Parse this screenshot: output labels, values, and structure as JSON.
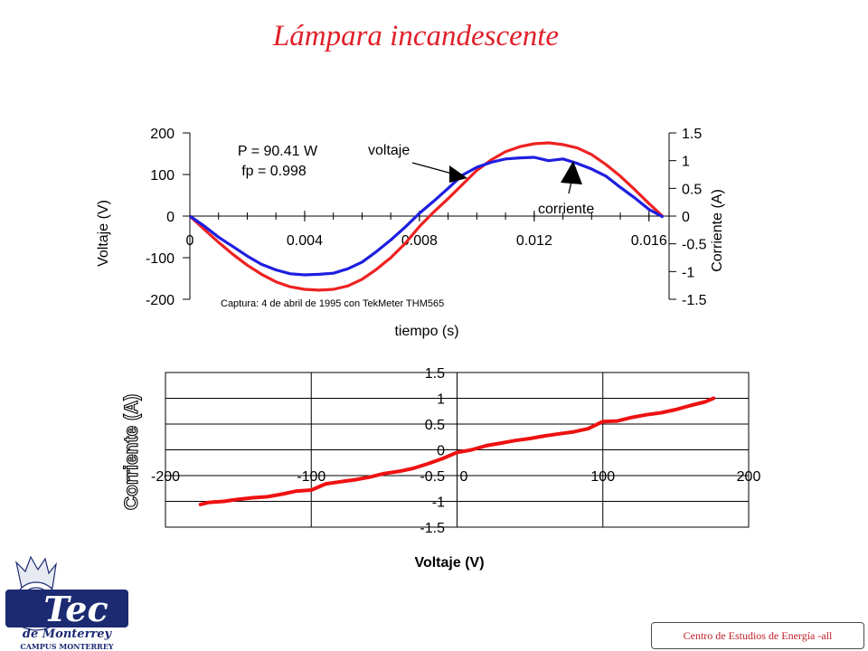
{
  "title": "Lámpara incandescente",
  "footer": "Centro de Estudios de Energía -all",
  "logo": {
    "brand": "Tec",
    "line2": "de Monterrey",
    "line3": "CAMPUS MONTERREY"
  },
  "colors": {
    "title": "#e0202a",
    "voltage": "#ee2222",
    "current": "#1e1ee0",
    "iv_line": "#ee1111",
    "logo": "#1c2a72"
  },
  "chart_data": [
    {
      "type": "line",
      "xlabel": "tiempo (s)",
      "ylabel": "Voltaje (V)",
      "y2label": "Corriente (A)",
      "xlim": [
        0,
        0.0167
      ],
      "ylim": [
        -200,
        200
      ],
      "y2lim": [
        -1.5,
        1.5
      ],
      "x_tick_labels": [
        "0",
        "0.004",
        "0.008",
        "0.012",
        "0.016"
      ],
      "y_tick_labels": [
        "200",
        "100",
        "0",
        "-100",
        "-200"
      ],
      "y2_tick_labels": [
        "1.5",
        "1",
        "0.5",
        "0",
        "-0.5",
        "-1",
        "-1.5"
      ],
      "annotations": {
        "power": "P = 90.41 W",
        "pf": "fp = 0.998",
        "voltage_label": "voltaje",
        "current_label": "corriente",
        "caption": "Captura: 4 de abril de 1995 con TekMeter THM565"
      },
      "grid": false,
      "series": [
        {
          "name": "voltaje",
          "axis": "left",
          "x": [
            0,
            0.0005,
            0.001,
            0.0015,
            0.002,
            0.0025,
            0.003,
            0.0035,
            0.004,
            0.0045,
            0.005,
            0.0055,
            0.006,
            0.0065,
            0.007,
            0.0075,
            0.008,
            0.0085,
            0.009,
            0.0095,
            0.01,
            0.0105,
            0.011,
            0.0115,
            0.012,
            0.0125,
            0.013,
            0.0135,
            0.014,
            0.0145,
            0.015,
            0.0155,
            0.016,
            0.0165
          ],
          "values": [
            0,
            -32,
            -63,
            -92,
            -118,
            -140,
            -158,
            -170,
            -176,
            -178,
            -176,
            -168,
            -152,
            -128,
            -100,
            -66,
            -25,
            10,
            42,
            76,
            110,
            135,
            155,
            167,
            174,
            176,
            172,
            164,
            148,
            124,
            96,
            64,
            30,
            -2
          ]
        },
        {
          "name": "corriente",
          "axis": "right",
          "x": [
            0,
            0.0005,
            0.001,
            0.0015,
            0.002,
            0.0025,
            0.003,
            0.0035,
            0.004,
            0.0045,
            0.005,
            0.0055,
            0.006,
            0.0065,
            0.007,
            0.0075,
            0.008,
            0.0085,
            0.009,
            0.0095,
            0.01,
            0.0105,
            0.011,
            0.0115,
            0.012,
            0.0125,
            0.013,
            0.0135,
            0.014,
            0.0145,
            0.015,
            0.0155,
            0.016,
            0.0165
          ],
          "values": [
            0,
            -0.18,
            -0.38,
            -0.55,
            -0.72,
            -0.87,
            -0.97,
            -1.04,
            -1.06,
            -1.05,
            -1.03,
            -0.95,
            -0.83,
            -0.64,
            -0.43,
            -0.2,
            0.05,
            0.27,
            0.5,
            0.74,
            0.88,
            0.97,
            1.03,
            1.05,
            1.06,
            1.0,
            1.03,
            0.95,
            0.85,
            0.72,
            0.52,
            0.33,
            0.12,
            -0.02
          ]
        }
      ]
    },
    {
      "type": "line",
      "xlabel": "Voltaje (V)",
      "ylabel": "Corriente (A)",
      "xlim": [
        -200,
        200
      ],
      "ylim": [
        -1.5,
        1.5
      ],
      "x_tick_labels": [
        "-200",
        "-100",
        "0",
        "100",
        "200"
      ],
      "y_tick_labels": [
        "1.5",
        "1",
        "0.5",
        "0",
        "-0.5",
        "-1",
        "-1.5"
      ],
      "grid": true,
      "series": [
        {
          "x": [
            -176,
            -170,
            -160,
            -150,
            -140,
            -130,
            -120,
            -110,
            -100,
            -90,
            -80,
            -70,
            -60,
            -50,
            -40,
            -30,
            -20,
            -10,
            0,
            10,
            20,
            30,
            40,
            50,
            60,
            70,
            80,
            90,
            100,
            110,
            120,
            130,
            140,
            150,
            160,
            170,
            176
          ],
          "values": [
            -1.06,
            -1.02,
            -1.0,
            -0.96,
            -0.93,
            -0.91,
            -0.86,
            -0.8,
            -0.78,
            -0.66,
            -0.62,
            -0.58,
            -0.53,
            -0.46,
            -0.42,
            -0.36,
            -0.27,
            -0.17,
            -0.05,
            0.0,
            0.08,
            0.13,
            0.18,
            0.22,
            0.27,
            0.31,
            0.35,
            0.41,
            0.55,
            0.56,
            0.63,
            0.68,
            0.72,
            0.78,
            0.86,
            0.93,
            1.0
          ]
        }
      ]
    }
  ]
}
